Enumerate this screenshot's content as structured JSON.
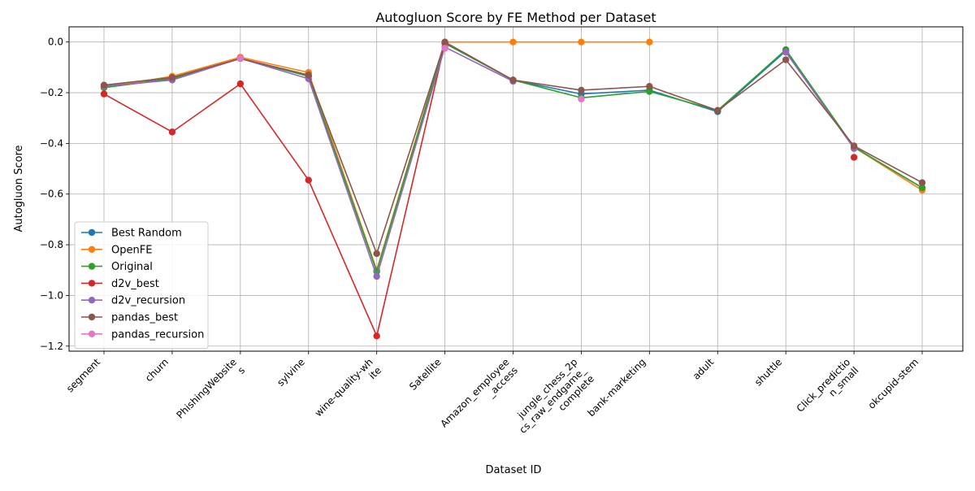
{
  "chart_data": {
    "type": "line",
    "title": "Autogluon Score by FE Method per Dataset",
    "xlabel": "Dataset ID",
    "ylabel": "Autogluon Score",
    "ylim": [
      -1.22,
      0.06
    ],
    "yticks": [
      0.0,
      -0.2,
      -0.4,
      -0.6,
      -0.8,
      -1.0,
      -1.2
    ],
    "ytick_labels": [
      "0.0",
      "−0.2",
      "−0.4",
      "−0.6",
      "−0.8",
      "−1.0",
      "−1.2"
    ],
    "grid": true,
    "legend_position": "lower-left",
    "categories": [
      [
        "segment"
      ],
      [
        "churn"
      ],
      [
        "PhishingWebsite",
        "s"
      ],
      [
        "sylvine"
      ],
      [
        "wine-quality-wh",
        "ite"
      ],
      [
        "Satellite"
      ],
      [
        "Amazon_employee",
        "_access"
      ],
      [
        "jungle_chess_2p",
        "cs_raw_endgame_",
        "complete"
      ],
      [
        "bank-marketing"
      ],
      [
        "adult"
      ],
      [
        "shuttle"
      ],
      [
        "Click_predictio",
        "n_small"
      ],
      [
        "okcupid-stem"
      ]
    ],
    "series": [
      {
        "name": "Best Random",
        "color": "#1f77b4",
        "values": [
          -0.175,
          -0.145,
          -0.065,
          -0.135,
          -0.905,
          -0.005,
          -0.15,
          -0.205,
          -0.19,
          -0.275,
          -0.035,
          -0.415,
          -0.575
        ]
      },
      {
        "name": "OpenFE",
        "color": "#ff7f0e",
        "values": [
          -0.18,
          -0.135,
          -0.06,
          -0.12,
          -0.9,
          0.0,
          0.0,
          0.0,
          0.0,
          null,
          null,
          -0.415,
          -0.585
        ]
      },
      {
        "name": "Original",
        "color": "#2ca02c",
        "values": [
          -0.18,
          -0.145,
          -0.065,
          -0.135,
          -0.905,
          -0.005,
          -0.15,
          -0.22,
          -0.195,
          -0.27,
          -0.03,
          -0.415,
          -0.575
        ]
      },
      {
        "name": "d2v_best",
        "color": "#d62728",
        "values": [
          -0.205,
          -0.355,
          -0.165,
          -0.545,
          -1.16,
          -0.005,
          null,
          null,
          null,
          null,
          null,
          -0.455,
          null
        ]
      },
      {
        "name": "d2v_recursion",
        "color": "#9467bd",
        "values": [
          -0.175,
          -0.15,
          -0.065,
          -0.145,
          -0.925,
          -0.02,
          -0.155,
          null,
          null,
          null,
          -0.04,
          -0.42,
          null
        ]
      },
      {
        "name": "pandas_best",
        "color": "#8c564b",
        "values": [
          -0.17,
          -0.14,
          -0.065,
          -0.13,
          -0.835,
          0.0,
          -0.15,
          -0.19,
          -0.175,
          -0.27,
          -0.07,
          -0.41,
          -0.555
        ]
      },
      {
        "name": "pandas_recursion",
        "color": "#e377c2",
        "values": [
          null,
          null,
          -0.065,
          null,
          null,
          -0.025,
          null,
          -0.225,
          null,
          null,
          null,
          null,
          null
        ]
      }
    ]
  }
}
